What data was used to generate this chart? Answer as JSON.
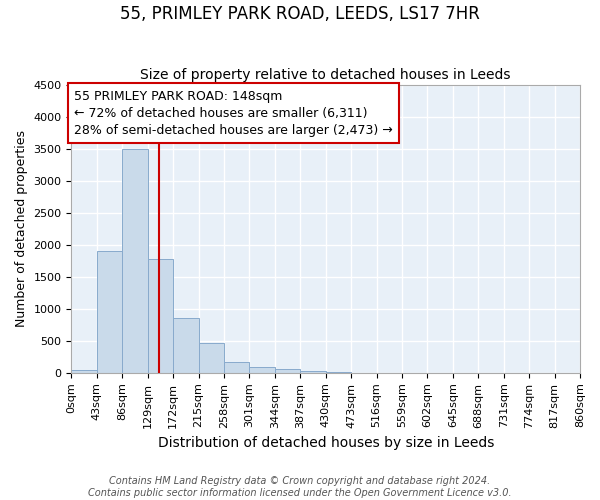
{
  "title": "55, PRIMLEY PARK ROAD, LEEDS, LS17 7HR",
  "subtitle": "Size of property relative to detached houses in Leeds",
  "xlabel": "Distribution of detached houses by size in Leeds",
  "ylabel": "Number of detached properties",
  "bar_values": [
    50,
    1900,
    3500,
    1780,
    850,
    460,
    170,
    95,
    55,
    30,
    20,
    0,
    0,
    0,
    0,
    0,
    0,
    0,
    0,
    0
  ],
  "bin_edges": [
    0,
    43,
    86,
    129,
    172,
    215,
    258,
    301,
    344,
    387,
    430,
    473,
    516,
    559,
    602,
    645,
    688,
    731,
    774,
    817,
    860
  ],
  "tick_labels": [
    "0sqm",
    "43sqm",
    "86sqm",
    "129sqm",
    "172sqm",
    "215sqm",
    "258sqm",
    "301sqm",
    "344sqm",
    "387sqm",
    "430sqm",
    "473sqm",
    "516sqm",
    "559sqm",
    "602sqm",
    "645sqm",
    "688sqm",
    "731sqm",
    "774sqm",
    "817sqm",
    "860sqm"
  ],
  "bar_color": "#c9daea",
  "bar_edge_color": "#88aacc",
  "background_color": "#e8f0f8",
  "grid_color": "#ffffff",
  "vline_x": 148,
  "vline_color": "#cc0000",
  "annotation_line1": "55 PRIMLEY PARK ROAD: 148sqm",
  "annotation_line2": "← 72% of detached houses are smaller (6,311)",
  "annotation_line3": "28% of semi-detached houses are larger (2,473) →",
  "annotation_box_color": "#cc0000",
  "ylim": [
    0,
    4500
  ],
  "yticks": [
    0,
    500,
    1000,
    1500,
    2000,
    2500,
    3000,
    3500,
    4000,
    4500
  ],
  "footer_line1": "Contains HM Land Registry data © Crown copyright and database right 2024.",
  "footer_line2": "Contains public sector information licensed under the Open Government Licence v3.0.",
  "title_fontsize": 12,
  "subtitle_fontsize": 10,
  "xlabel_fontsize": 10,
  "ylabel_fontsize": 9,
  "tick_fontsize": 8,
  "annotation_fontsize": 9,
  "footer_fontsize": 7
}
